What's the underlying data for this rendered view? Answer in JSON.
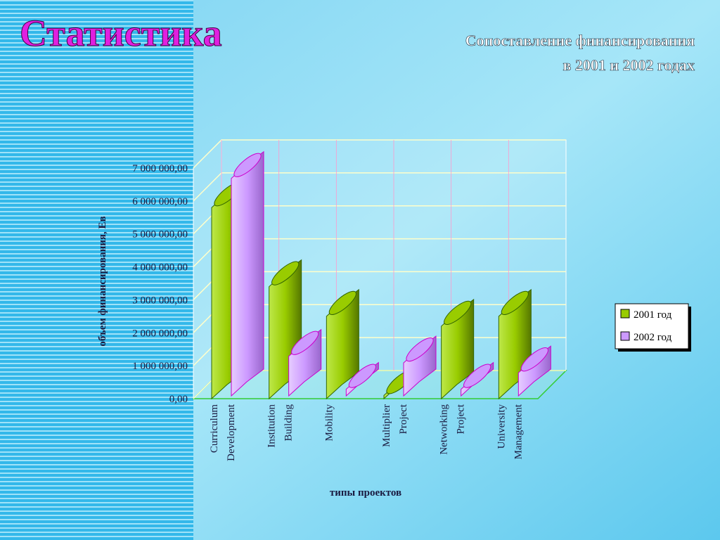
{
  "chart_data": {
    "type": "bar",
    "title": "Статистика",
    "subtitle": [
      "Сопоставление финансирования",
      "в 2001 и 2002 годах"
    ],
    "y_label": "объем финансирования, Ев",
    "x_label": "типы проектов",
    "categories": [
      [
        "Curriculum",
        "Development"
      ],
      [
        "Institution",
        "Building"
      ],
      [
        "Mobility"
      ],
      [
        "Multiplier",
        "Project"
      ],
      [
        "Networking",
        "Project"
      ],
      [
        "University",
        "Management"
      ]
    ],
    "series": [
      {
        "name": "2001 год",
        "color": "#99cc00",
        "values": [
          5800000,
          3400000,
          2500000,
          100000,
          2200000,
          2500000
        ]
      },
      {
        "name": "2002 год",
        "color": "#cc99ff",
        "values": [
          6600000,
          1200000,
          200000,
          1000000,
          200000,
          700000
        ]
      }
    ],
    "ylim": [
      0,
      7000000
    ],
    "yticks": [
      {
        "value": 0,
        "label": "0,00"
      },
      {
        "value": 1000000,
        "label": "1 000 000,00"
      },
      {
        "value": 2000000,
        "label": "2 000 000,00"
      },
      {
        "value": 3000000,
        "label": "3 000 000,00"
      },
      {
        "value": 4000000,
        "label": "4 000 000,00"
      },
      {
        "value": 5000000,
        "label": "5 000 000,00"
      },
      {
        "value": 6000000,
        "label": "6 000 000,00"
      },
      {
        "value": 7000000,
        "label": "7 000 000,00"
      }
    ],
    "grid": true,
    "legend": "right"
  }
}
